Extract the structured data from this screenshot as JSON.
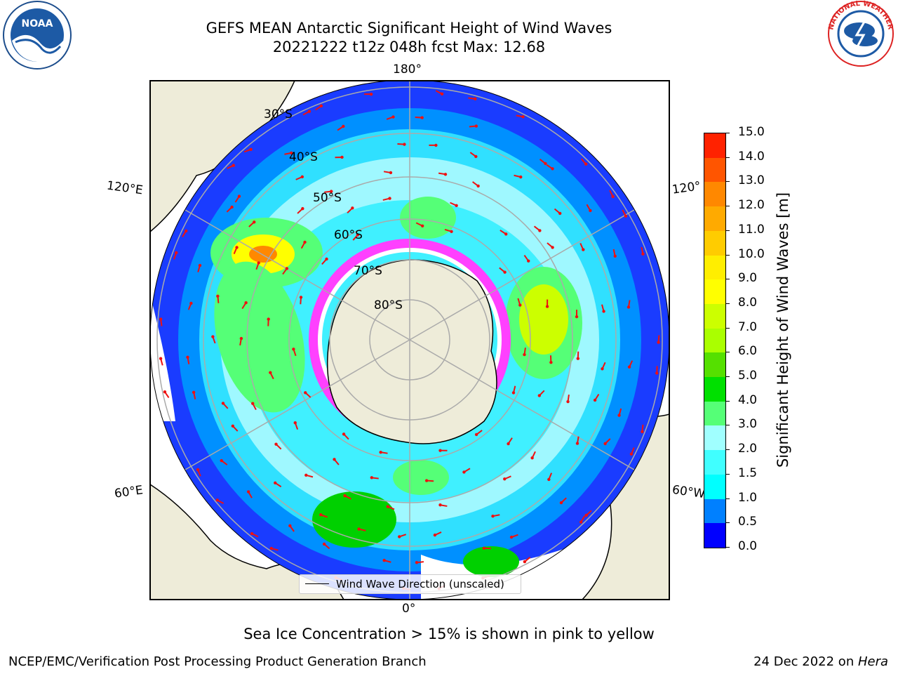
{
  "title_line1": "GEFS MEAN Antarctic Significant Height of Wind Waves",
  "title_line2": "20221222 t12z 048h fcst   Max: 12.68",
  "lon_labels": {
    "top": "180°",
    "bottom": "0°",
    "left_upper": "120°E",
    "left_lower": "60°E",
    "right_upper": "120°",
    "right_lower": "60°W"
  },
  "lat_labels": [
    "30°S",
    "40°S",
    "50°S",
    "60°S",
    "70°S",
    "80°S"
  ],
  "legend": {
    "label": "Wind Wave Direction (unscaled)"
  },
  "colorbar": {
    "label": "Significant Height of Wind Waves [m]",
    "ticks": [
      "0.0",
      "0.5",
      "1.0",
      "1.5",
      "2.0",
      "3.0",
      "4.0",
      "5.0",
      "6.0",
      "7.0",
      "8.0",
      "9.0",
      "10.0",
      "11.0",
      "12.0",
      "13.0",
      "14.0",
      "15.0"
    ],
    "colors": [
      "#0000ff",
      "#0080ff",
      "#00ffff",
      "#40ffff",
      "#a0ffff",
      "#55ff77",
      "#00e000",
      "#55e000",
      "#aaff00",
      "#ccff00",
      "#ffff00",
      "#ffee00",
      "#ffcc00",
      "#ffaa00",
      "#ff8800",
      "#ff5500",
      "#ff2200"
    ]
  },
  "note": "Sea Ice Concentration > 15% is shown in pink to yellow",
  "footer_left": "NCEP/EMC/Verification Post Processing Product Generation Branch",
  "footer_date": "24 Dec 2022 on ",
  "footer_machine": "Hera",
  "logos": {
    "noaa": "NOAA",
    "nws": "NATIONAL WEATHER SERVICE"
  }
}
